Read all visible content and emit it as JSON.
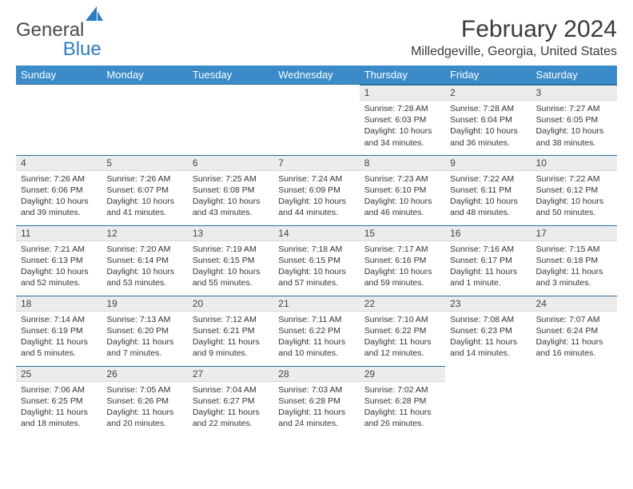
{
  "brand": {
    "general": "General",
    "blue": "Blue"
  },
  "title": "February 2024",
  "location": "Milledgeville, Georgia, United States",
  "colors": {
    "header_bg": "#3b8bc9",
    "header_border": "#2a6ea0",
    "daynum_bg": "#ececec",
    "text": "#333333",
    "brand_blue": "#2e7cc0"
  },
  "weekdays": [
    "Sunday",
    "Monday",
    "Tuesday",
    "Wednesday",
    "Thursday",
    "Friday",
    "Saturday"
  ],
  "weeks": [
    [
      null,
      null,
      null,
      null,
      {
        "day": "1",
        "sunrise": "Sunrise: 7:28 AM",
        "sunset": "Sunset: 6:03 PM",
        "daylight": "Daylight: 10 hours and 34 minutes."
      },
      {
        "day": "2",
        "sunrise": "Sunrise: 7:28 AM",
        "sunset": "Sunset: 6:04 PM",
        "daylight": "Daylight: 10 hours and 36 minutes."
      },
      {
        "day": "3",
        "sunrise": "Sunrise: 7:27 AM",
        "sunset": "Sunset: 6:05 PM",
        "daylight": "Daylight: 10 hours and 38 minutes."
      }
    ],
    [
      {
        "day": "4",
        "sunrise": "Sunrise: 7:26 AM",
        "sunset": "Sunset: 6:06 PM",
        "daylight": "Daylight: 10 hours and 39 minutes."
      },
      {
        "day": "5",
        "sunrise": "Sunrise: 7:26 AM",
        "sunset": "Sunset: 6:07 PM",
        "daylight": "Daylight: 10 hours and 41 minutes."
      },
      {
        "day": "6",
        "sunrise": "Sunrise: 7:25 AM",
        "sunset": "Sunset: 6:08 PM",
        "daylight": "Daylight: 10 hours and 43 minutes."
      },
      {
        "day": "7",
        "sunrise": "Sunrise: 7:24 AM",
        "sunset": "Sunset: 6:09 PM",
        "daylight": "Daylight: 10 hours and 44 minutes."
      },
      {
        "day": "8",
        "sunrise": "Sunrise: 7:23 AM",
        "sunset": "Sunset: 6:10 PM",
        "daylight": "Daylight: 10 hours and 46 minutes."
      },
      {
        "day": "9",
        "sunrise": "Sunrise: 7:22 AM",
        "sunset": "Sunset: 6:11 PM",
        "daylight": "Daylight: 10 hours and 48 minutes."
      },
      {
        "day": "10",
        "sunrise": "Sunrise: 7:22 AM",
        "sunset": "Sunset: 6:12 PM",
        "daylight": "Daylight: 10 hours and 50 minutes."
      }
    ],
    [
      {
        "day": "11",
        "sunrise": "Sunrise: 7:21 AM",
        "sunset": "Sunset: 6:13 PM",
        "daylight": "Daylight: 10 hours and 52 minutes."
      },
      {
        "day": "12",
        "sunrise": "Sunrise: 7:20 AM",
        "sunset": "Sunset: 6:14 PM",
        "daylight": "Daylight: 10 hours and 53 minutes."
      },
      {
        "day": "13",
        "sunrise": "Sunrise: 7:19 AM",
        "sunset": "Sunset: 6:15 PM",
        "daylight": "Daylight: 10 hours and 55 minutes."
      },
      {
        "day": "14",
        "sunrise": "Sunrise: 7:18 AM",
        "sunset": "Sunset: 6:15 PM",
        "daylight": "Daylight: 10 hours and 57 minutes."
      },
      {
        "day": "15",
        "sunrise": "Sunrise: 7:17 AM",
        "sunset": "Sunset: 6:16 PM",
        "daylight": "Daylight: 10 hours and 59 minutes."
      },
      {
        "day": "16",
        "sunrise": "Sunrise: 7:16 AM",
        "sunset": "Sunset: 6:17 PM",
        "daylight": "Daylight: 11 hours and 1 minute."
      },
      {
        "day": "17",
        "sunrise": "Sunrise: 7:15 AM",
        "sunset": "Sunset: 6:18 PM",
        "daylight": "Daylight: 11 hours and 3 minutes."
      }
    ],
    [
      {
        "day": "18",
        "sunrise": "Sunrise: 7:14 AM",
        "sunset": "Sunset: 6:19 PM",
        "daylight": "Daylight: 11 hours and 5 minutes."
      },
      {
        "day": "19",
        "sunrise": "Sunrise: 7:13 AM",
        "sunset": "Sunset: 6:20 PM",
        "daylight": "Daylight: 11 hours and 7 minutes."
      },
      {
        "day": "20",
        "sunrise": "Sunrise: 7:12 AM",
        "sunset": "Sunset: 6:21 PM",
        "daylight": "Daylight: 11 hours and 9 minutes."
      },
      {
        "day": "21",
        "sunrise": "Sunrise: 7:11 AM",
        "sunset": "Sunset: 6:22 PM",
        "daylight": "Daylight: 11 hours and 10 minutes."
      },
      {
        "day": "22",
        "sunrise": "Sunrise: 7:10 AM",
        "sunset": "Sunset: 6:22 PM",
        "daylight": "Daylight: 11 hours and 12 minutes."
      },
      {
        "day": "23",
        "sunrise": "Sunrise: 7:08 AM",
        "sunset": "Sunset: 6:23 PM",
        "daylight": "Daylight: 11 hours and 14 minutes."
      },
      {
        "day": "24",
        "sunrise": "Sunrise: 7:07 AM",
        "sunset": "Sunset: 6:24 PM",
        "daylight": "Daylight: 11 hours and 16 minutes."
      }
    ],
    [
      {
        "day": "25",
        "sunrise": "Sunrise: 7:06 AM",
        "sunset": "Sunset: 6:25 PM",
        "daylight": "Daylight: 11 hours and 18 minutes."
      },
      {
        "day": "26",
        "sunrise": "Sunrise: 7:05 AM",
        "sunset": "Sunset: 6:26 PM",
        "daylight": "Daylight: 11 hours and 20 minutes."
      },
      {
        "day": "27",
        "sunrise": "Sunrise: 7:04 AM",
        "sunset": "Sunset: 6:27 PM",
        "daylight": "Daylight: 11 hours and 22 minutes."
      },
      {
        "day": "28",
        "sunrise": "Sunrise: 7:03 AM",
        "sunset": "Sunset: 6:28 PM",
        "daylight": "Daylight: 11 hours and 24 minutes."
      },
      {
        "day": "29",
        "sunrise": "Sunrise: 7:02 AM",
        "sunset": "Sunset: 6:28 PM",
        "daylight": "Daylight: 11 hours and 26 minutes."
      },
      null,
      null
    ]
  ]
}
